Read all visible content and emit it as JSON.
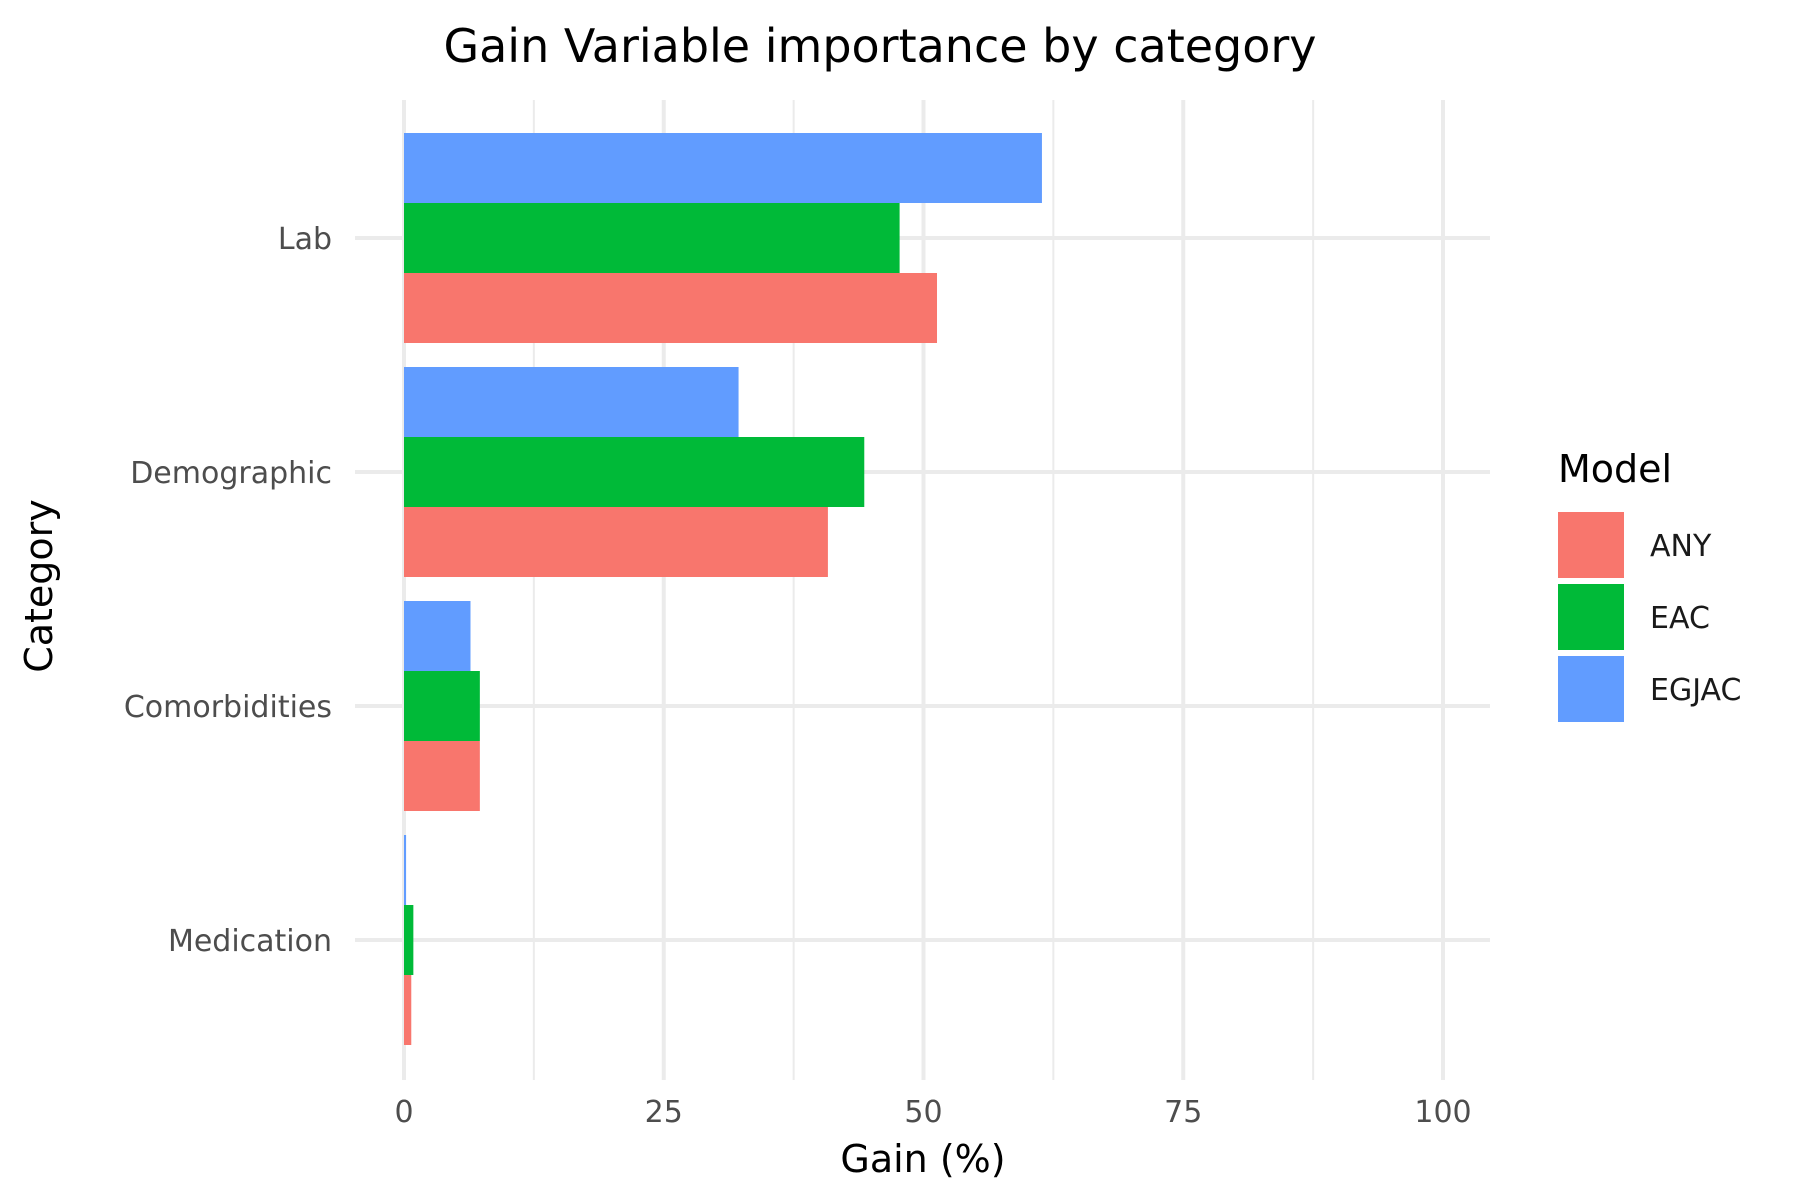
{
  "chart_data": {
    "type": "bar",
    "orientation": "horizontal",
    "title": "Gain Variable importance by category",
    "xlabel": "Gain (%)",
    "ylabel": "Category",
    "xlim": [
      0,
      100
    ],
    "x_ticks": [
      0,
      25,
      50,
      75,
      100
    ],
    "categories": [
      "Lab",
      "Demographic",
      "Comorbidities",
      "Medication"
    ],
    "series": [
      {
        "name": "ANY",
        "color": "#F8766D",
        "values": [
          51.3,
          40.8,
          7.3,
          0.7
        ]
      },
      {
        "name": "EAC",
        "color": "#00BA38",
        "values": [
          47.7,
          44.3,
          7.3,
          0.9
        ]
      },
      {
        "name": "EGJAC",
        "color": "#619CFF",
        "values": [
          61.4,
          32.2,
          6.4,
          0.2
        ]
      }
    ],
    "legend": {
      "title": "Model",
      "position": "right"
    },
    "grid": true,
    "grid_color": "#ebebeb",
    "background": "#ffffff"
  }
}
